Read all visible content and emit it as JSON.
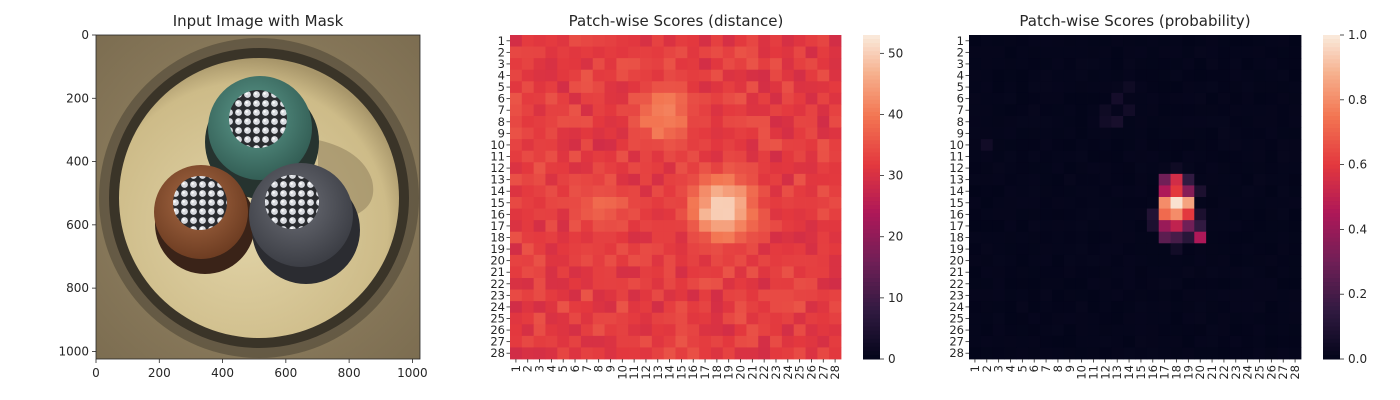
{
  "chart_data": [
    {
      "type": "image",
      "title": "Input Image with Mask",
      "xlabel": "",
      "ylabel": "",
      "xlim": [
        0,
        1024
      ],
      "ylim": [
        1024,
        0
      ],
      "xticks": [
        "0",
        "200",
        "400",
        "600",
        "800",
        "1000"
      ],
      "yticks": [
        "0",
        "200",
        "400",
        "600",
        "800",
        "1000"
      ],
      "image": {
        "subject": "cable cross-section with three insulated conductors (green, brown, grey) inside a cream-colored sheath on a sandy background",
        "colors": {
          "background": "#8a7a5c",
          "sheath_ring": "#3a3428",
          "sheath_fill": "#d8c89a",
          "green_conductor": "#4f8a7e",
          "brown_conductor": "#9a5a3a",
          "grey_conductor": "#5c5e66",
          "wire": "#d6d8dc"
        }
      }
    },
    {
      "type": "heatmap",
      "title": "Patch-wise Scores (distance)",
      "xlabel": "",
      "ylabel": "",
      "rows": 28,
      "cols": 28,
      "xticks": [
        "1",
        "2",
        "3",
        "4",
        "5",
        "6",
        "7",
        "8",
        "9",
        "10",
        "11",
        "12",
        "13",
        "14",
        "15",
        "16",
        "17",
        "18",
        "19",
        "20",
        "21",
        "22",
        "23",
        "24",
        "25",
        "26",
        "27",
        "28"
      ],
      "yticks": [
        "1",
        "2",
        "3",
        "4",
        "5",
        "6",
        "7",
        "8",
        "9",
        "10",
        "11",
        "12",
        "13",
        "14",
        "15",
        "16",
        "17",
        "18",
        "19",
        "20",
        "21",
        "22",
        "23",
        "24",
        "25",
        "26",
        "27",
        "28"
      ],
      "colormap": "rocket",
      "vmin": 0,
      "vmax": 53,
      "colorbar_ticks": [
        "0",
        "10",
        "20",
        "30",
        "40",
        "50"
      ],
      "base_value": 31,
      "hotspots": [
        {
          "row": 15.5,
          "col": 18.5,
          "radius": 2.6,
          "value": 52
        },
        {
          "row": 7.5,
          "col": 13.5,
          "radius": 2.5,
          "value": 42
        },
        {
          "row": 15.5,
          "col": 8.5,
          "radius": 2.2,
          "value": 38
        }
      ]
    },
    {
      "type": "heatmap",
      "title": "Patch-wise Scores (probability)",
      "xlabel": "",
      "ylabel": "",
      "rows": 28,
      "cols": 28,
      "xticks": [
        "1",
        "2",
        "3",
        "4",
        "5",
        "6",
        "7",
        "8",
        "9",
        "10",
        "11",
        "12",
        "13",
        "14",
        "15",
        "16",
        "17",
        "18",
        "19",
        "20",
        "21",
        "22",
        "23",
        "24",
        "25",
        "26",
        "27",
        "28"
      ],
      "yticks": [
        "1",
        "2",
        "3",
        "4",
        "5",
        "6",
        "7",
        "8",
        "9",
        "10",
        "11",
        "12",
        "13",
        "14",
        "15",
        "16",
        "17",
        "18",
        "19",
        "20",
        "21",
        "22",
        "23",
        "24",
        "25",
        "26",
        "27",
        "28"
      ],
      "colormap": "rocket",
      "vmin": 0.0,
      "vmax": 1.0,
      "colorbar_ticks": [
        "0.0",
        "0.2",
        "0.4",
        "0.6",
        "0.8",
        "1.0"
      ],
      "base_value": 0.0,
      "cells": [
        {
          "row": 13,
          "col": 18,
          "value": 0.55
        },
        {
          "row": 13,
          "col": 17,
          "value": 0.3
        },
        {
          "row": 13,
          "col": 19,
          "value": 0.15
        },
        {
          "row": 14,
          "col": 17,
          "value": 0.45
        },
        {
          "row": 14,
          "col": 18,
          "value": 0.6
        },
        {
          "row": 14,
          "col": 19,
          "value": 0.35
        },
        {
          "row": 15,
          "col": 17,
          "value": 0.8
        },
        {
          "row": 15,
          "col": 18,
          "value": 0.98
        },
        {
          "row": 15,
          "col": 19,
          "value": 0.85
        },
        {
          "row": 16,
          "col": 17,
          "value": 0.72
        },
        {
          "row": 16,
          "col": 18,
          "value": 0.8
        },
        {
          "row": 16,
          "col": 19,
          "value": 0.6
        },
        {
          "row": 16,
          "col": 16,
          "value": 0.1
        },
        {
          "row": 16,
          "col": 20,
          "value": 0.08
        },
        {
          "row": 17,
          "col": 17,
          "value": 0.4
        },
        {
          "row": 17,
          "col": 18,
          "value": 0.5
        },
        {
          "row": 17,
          "col": 19,
          "value": 0.3
        },
        {
          "row": 17,
          "col": 20,
          "value": 0.15
        },
        {
          "row": 17,
          "col": 16,
          "value": 0.08
        },
        {
          "row": 18,
          "col": 17,
          "value": 0.25
        },
        {
          "row": 18,
          "col": 18,
          "value": 0.2
        },
        {
          "row": 18,
          "col": 19,
          "value": 0.12
        },
        {
          "row": 18,
          "col": 20,
          "value": 0.45
        },
        {
          "row": 19,
          "col": 18,
          "value": 0.05
        },
        {
          "row": 14,
          "col": 20,
          "value": 0.08
        },
        {
          "row": 12,
          "col": 18,
          "value": 0.04
        },
        {
          "row": 6,
          "col": 13,
          "value": 0.06
        },
        {
          "row": 7,
          "col": 14,
          "value": 0.05
        },
        {
          "row": 8,
          "col": 12,
          "value": 0.05
        },
        {
          "row": 8,
          "col": 13,
          "value": 0.07
        },
        {
          "row": 7,
          "col": 12,
          "value": 0.04
        },
        {
          "row": 10,
          "col": 2,
          "value": 0.05
        },
        {
          "row": 5,
          "col": 14,
          "value": 0.04
        }
      ]
    }
  ]
}
